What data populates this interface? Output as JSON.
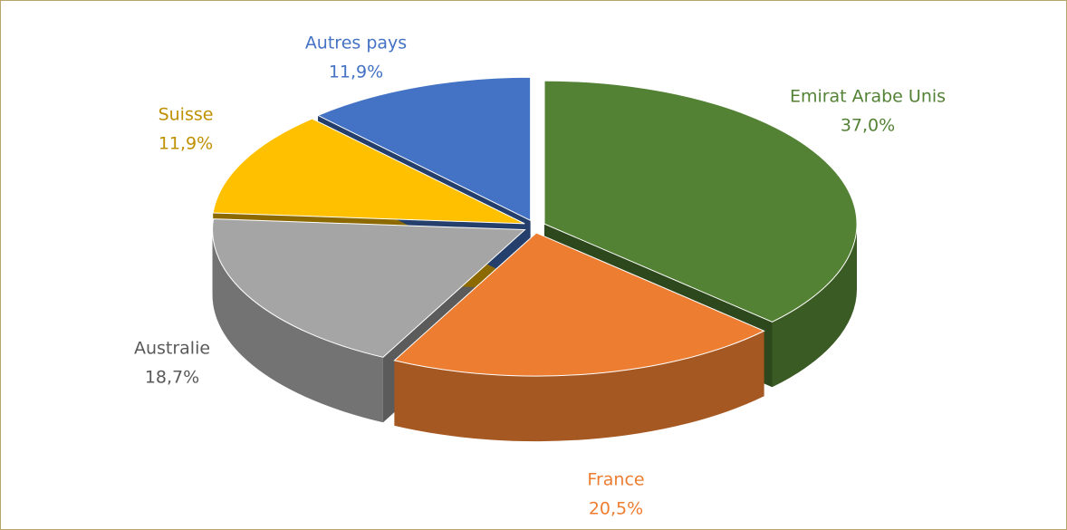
{
  "chart_data": {
    "type": "pie3d",
    "categories": [
      "Emirat Arabe Unis",
      "France",
      "Australie",
      "Suisse",
      "Autres pays"
    ],
    "values": [
      37.0,
      20.5,
      18.7,
      11.9,
      11.9
    ],
    "value_labels": [
      "37,0%",
      "20,5%",
      "18,7%",
      "11,9%",
      "11,9%"
    ],
    "colors": [
      "#548235",
      "#ed7d31",
      "#a5a5a5",
      "#ffc000",
      "#4472c4"
    ],
    "label_colors": [
      "#548235",
      "#ed7d31",
      "#595959",
      "#bf9000",
      "#4472c4"
    ]
  }
}
